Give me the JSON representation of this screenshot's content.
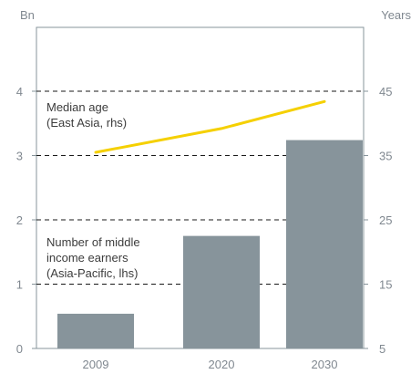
{
  "chart_data": {
    "type": "bar",
    "categories": [
      "2009",
      "2020",
      "2030"
    ],
    "left_axis": {
      "unit_label": "Bn",
      "ylim": [
        0,
        5
      ],
      "ticks": [
        "0",
        "1",
        "2",
        "3",
        "4"
      ]
    },
    "right_axis": {
      "unit_label": "Years",
      "ylim": [
        5,
        55
      ],
      "ticks": [
        "5",
        "15",
        "25",
        "35",
        "45"
      ]
    },
    "series": [
      {
        "name": "Number of middle income earners (Asia-Pacific, lhs)",
        "type": "bar",
        "axis": "left",
        "values": [
          0.54,
          1.75,
          3.24
        ],
        "color": "#87949b"
      },
      {
        "name": "Median age (East Asia, rhs)",
        "type": "line",
        "axis": "right",
        "values": [
          35.5,
          39.2,
          43.4
        ],
        "color": "#f5d000"
      }
    ],
    "grid": "dashed horizontal at left-axis integers 1-4"
  },
  "annotations": {
    "median_age_line1": "Median age",
    "median_age_line2": "(East Asia, rhs)",
    "middle_income_line1": "Number of middle",
    "middle_income_line2": "income earners",
    "middle_income_line3": "(Asia-Pacific, lhs)"
  },
  "colors": {
    "bar": "#87949b",
    "line": "#f5d000",
    "frame": "#87949b",
    "grid": "#1a1a1a",
    "tick_text": "#808890",
    "annotation_text": "#3c3c3c"
  }
}
